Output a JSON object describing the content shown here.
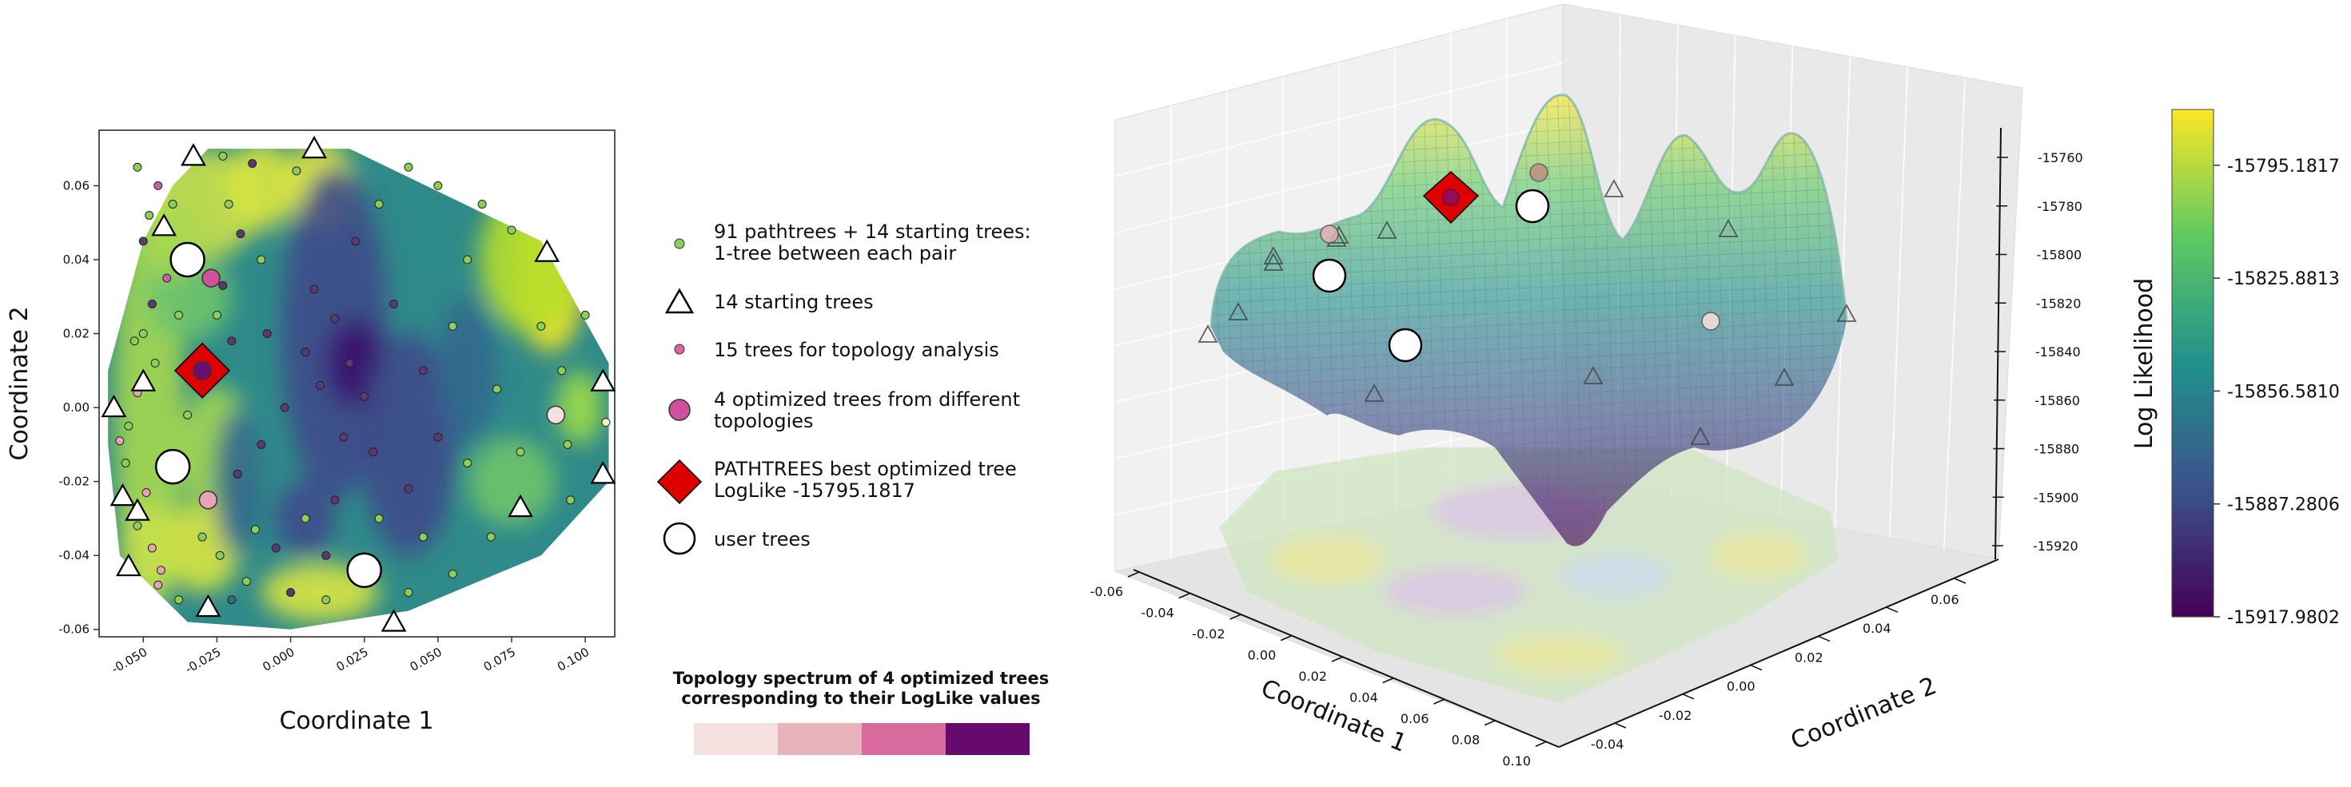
{
  "chart_data": [
    {
      "type": "scatter",
      "subtype": "contour-scatter",
      "xlabel": "Coordinate 1",
      "ylabel": "Coordinate 2",
      "xticks": [
        "-0.050",
        "-0.025",
        "0.000",
        "0.025",
        "0.050",
        "0.075",
        "0.100"
      ],
      "yticks": [
        "-0.06",
        "-0.04",
        "-0.02",
        "0.00",
        "0.02",
        "0.04",
        "0.06"
      ],
      "xlim": [
        -0.065,
        0.11
      ],
      "ylim": [
        -0.062,
        0.075
      ],
      "starting_trees": [
        {
          "x": -0.033,
          "y": 0.068
        },
        {
          "x": 0.008,
          "y": 0.07
        },
        {
          "x": -0.043,
          "y": 0.049
        },
        {
          "x": 0.087,
          "y": 0.042
        },
        {
          "x": -0.05,
          "y": 0.007
        },
        {
          "x": -0.06,
          "y": 0.0
        },
        {
          "x": 0.106,
          "y": 0.007
        },
        {
          "x": 0.106,
          "y": -0.018
        },
        {
          "x": -0.057,
          "y": -0.024
        },
        {
          "x": -0.052,
          "y": -0.028
        },
        {
          "x": 0.078,
          "y": -0.027
        },
        {
          "x": -0.055,
          "y": -0.043
        },
        {
          "x": -0.028,
          "y": -0.054
        },
        {
          "x": 0.035,
          "y": -0.058
        }
      ],
      "optimized_trees": [
        {
          "x": -0.027,
          "y": 0.035,
          "color": "#d0509a"
        },
        {
          "x": -0.028,
          "y": -0.025,
          "color": "#e8a3b8"
        },
        {
          "x": 0.09,
          "y": -0.002,
          "color": "#f5e0e0"
        },
        {
          "x": -0.03,
          "y": 0.01,
          "color": "#6a0f6e"
        }
      ],
      "best_tree": {
        "x": -0.03,
        "y": 0.01
      },
      "user_trees": [
        {
          "x": -0.035,
          "y": 0.04
        },
        {
          "x": -0.04,
          "y": -0.016
        },
        {
          "x": 0.025,
          "y": -0.044
        }
      ],
      "small_points": [
        [
          -0.052,
          0.065,
          "#8ccf58"
        ],
        [
          -0.048,
          0.052,
          "#8ccf58"
        ],
        [
          -0.05,
          0.045,
          "#5a3a70"
        ],
        [
          -0.045,
          0.06,
          "#d060a0"
        ],
        [
          -0.04,
          0.055,
          "#8ccf58"
        ],
        [
          -0.042,
          0.035,
          "#d060a0"
        ],
        [
          -0.047,
          0.028,
          "#5a3a70"
        ],
        [
          -0.05,
          0.02,
          "#8ccf58"
        ],
        [
          -0.046,
          0.012,
          "#8ccf58"
        ],
        [
          -0.053,
          0.018,
          "#8ccf58"
        ],
        [
          -0.052,
          0.004,
          "#e8a3b8"
        ],
        [
          -0.055,
          -0.005,
          "#8ccf58"
        ],
        [
          -0.058,
          -0.009,
          "#e8a3b8"
        ],
        [
          -0.056,
          -0.015,
          "#8ccf58"
        ],
        [
          -0.049,
          -0.023,
          "#e8a3b8"
        ],
        [
          -0.052,
          -0.032,
          "#8ccf58"
        ],
        [
          -0.047,
          -0.038,
          "#e8a3b8"
        ],
        [
          -0.044,
          -0.044,
          "#e8a3b8"
        ],
        [
          -0.045,
          -0.048,
          "#e8a3b8"
        ],
        [
          -0.038,
          -0.052,
          "#8ccf58"
        ],
        [
          -0.02,
          -0.052,
          "#3a6a8a"
        ],
        [
          -0.015,
          -0.047,
          "#8ccf58"
        ],
        [
          0.0,
          -0.05,
          "#5a3a70"
        ],
        [
          0.012,
          -0.052,
          "#8ccf58"
        ],
        [
          -0.023,
          0.068,
          "#8ccf58"
        ],
        [
          -0.013,
          0.066,
          "#5a3a70"
        ],
        [
          0.002,
          0.064,
          "#8ccf58"
        ],
        [
          -0.021,
          0.055,
          "#8ccf58"
        ],
        [
          -0.017,
          0.047,
          "#5a3a70"
        ],
        [
          -0.01,
          0.04,
          "#8ccf58"
        ],
        [
          -0.023,
          0.033,
          "#5a3a70"
        ],
        [
          -0.025,
          0.025,
          "#8ccf58"
        ],
        [
          -0.02,
          0.018,
          "#5a3a70"
        ],
        [
          -0.008,
          0.02,
          "#5a3a70"
        ],
        [
          0.005,
          0.015,
          "#5a3a70"
        ],
        [
          0.01,
          0.006,
          "#5a3a70"
        ],
        [
          0.015,
          0.024,
          "#5a3a70"
        ],
        [
          0.02,
          0.012,
          "#5a3a70"
        ],
        [
          0.025,
          0.003,
          "#5a3a70"
        ],
        [
          0.018,
          -0.008,
          "#5a3a70"
        ],
        [
          0.028,
          -0.012,
          "#5a3a70"
        ],
        [
          0.035,
          0.028,
          "#5a3a70"
        ],
        [
          0.045,
          0.01,
          "#5a3a70"
        ],
        [
          0.05,
          -0.008,
          "#5a3a70"
        ],
        [
          0.04,
          -0.022,
          "#5a3a70"
        ],
        [
          0.055,
          0.022,
          "#8ccf58"
        ],
        [
          0.06,
          0.04,
          "#8ccf58"
        ],
        [
          0.065,
          0.055,
          "#8ccf58"
        ],
        [
          0.05,
          0.06,
          "#8ccf58"
        ],
        [
          0.075,
          0.048,
          "#8ccf58"
        ],
        [
          0.085,
          0.022,
          "#8ccf58"
        ],
        [
          0.092,
          0.01,
          "#8ccf58"
        ],
        [
          0.1,
          0.025,
          "#8ccf58"
        ],
        [
          0.094,
          -0.01,
          "#8ccf58"
        ],
        [
          0.107,
          -0.004,
          "#fff5c0"
        ],
        [
          0.095,
          -0.025,
          "#8ccf58"
        ],
        [
          0.068,
          -0.035,
          "#8ccf58"
        ],
        [
          0.055,
          -0.045,
          "#8ccf58"
        ],
        [
          0.04,
          -0.05,
          "#8ccf58"
        ],
        [
          0.045,
          -0.035,
          "#8ccf58"
        ],
        [
          0.03,
          -0.03,
          "#8ccf58"
        ],
        [
          0.015,
          -0.025,
          "#5a3a70"
        ],
        [
          0.005,
          -0.03,
          "#8ccf58"
        ],
        [
          -0.005,
          -0.038,
          "#5a3a70"
        ],
        [
          -0.012,
          -0.033,
          "#8ccf58"
        ],
        [
          -0.018,
          -0.018,
          "#5a3a70"
        ],
        [
          -0.01,
          -0.01,
          "#5a3a70"
        ],
        [
          -0.002,
          0.0,
          "#5a3a70"
        ],
        [
          0.008,
          0.032,
          "#5a3a70"
        ],
        [
          0.022,
          0.045,
          "#5a3a70"
        ],
        [
          0.03,
          0.055,
          "#8ccf58"
        ],
        [
          0.04,
          0.065,
          "#8ccf58"
        ],
        [
          -0.035,
          -0.002,
          "#8ccf58"
        ],
        [
          -0.038,
          0.025,
          "#8ccf58"
        ],
        [
          -0.03,
          -0.035,
          "#8ccf58"
        ],
        [
          -0.024,
          -0.04,
          "#8ccf58"
        ],
        [
          0.06,
          -0.015,
          "#8ccf58"
        ],
        [
          0.07,
          0.005,
          "#8ccf58"
        ],
        [
          0.078,
          -0.012,
          "#8ccf58"
        ],
        [
          0.012,
          -0.04,
          "#5a3a70"
        ]
      ],
      "contour_colors": [
        "#3b0f70",
        "#3e4a89",
        "#31688e",
        "#26828e",
        "#35b779",
        "#90d743",
        "#fde725"
      ]
    },
    {
      "type": "surface",
      "xlabel": "Coordinate 1",
      "ylabel": "Coordinate 2",
      "zlabel": "Log Likelihood",
      "xticks": [
        "-0.06",
        "-0.04",
        "-0.02",
        "0.00",
        "0.02",
        "0.04",
        "0.06",
        "0.08",
        "0.10"
      ],
      "yticks": [
        "-0.04",
        "-0.02",
        "0.00",
        "0.02",
        "0.04",
        "0.06"
      ],
      "zticks": [
        "-15760",
        "-15780",
        "-15800",
        "-15820",
        "-15840",
        "-15860",
        "-15880",
        "-15900",
        "-15920"
      ],
      "zlim": [
        -15925,
        -15755
      ]
    },
    {
      "type": "colorbar",
      "ticks": [
        "-15795.1817",
        "-15825.8813",
        "-15856.5810",
        "-15887.2806",
        "-15917.9802"
      ],
      "range": [
        -15917.9802,
        -15780
      ],
      "colors": [
        "#440154",
        "#3b528b",
        "#21918c",
        "#5ec962",
        "#fde725"
      ]
    },
    {
      "type": "heatmap",
      "title": "Topology spectrum of 4 optimized trees\ncorresponding to their LogLike values",
      "colors": [
        "#f5e0e0",
        "#e8b4bc",
        "#d96b9e",
        "#660a6e"
      ]
    }
  ],
  "legend": [
    {
      "marker": "small-green-dot",
      "label": "91 pathtrees + 14 starting trees:\n1-tree between each pair"
    },
    {
      "marker": "triangle",
      "label": "14 starting trees"
    },
    {
      "marker": "small-pink-dot",
      "label": "15 trees for topology analysis"
    },
    {
      "marker": "magenta-circle",
      "label": "4 optimized trees  from different\ntopologies"
    },
    {
      "marker": "red-diamond",
      "label": "PATHTREES best optimized tree\nLogLike -15795.1817"
    },
    {
      "marker": "white-circle",
      "label": "user trees"
    }
  ]
}
